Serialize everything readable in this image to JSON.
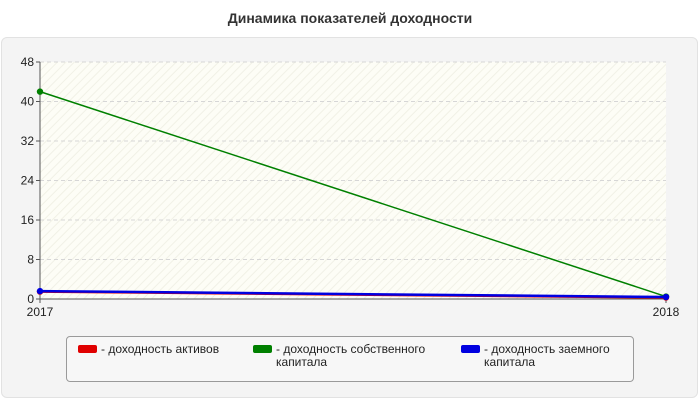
{
  "chart_data": {
    "type": "line",
    "title": "Динамика показателей доходности",
    "x": [
      "2017",
      "2018"
    ],
    "xlabel": "",
    "ylabel": "",
    "ylim": [
      0,
      48
    ],
    "yticks": [
      "0",
      "8",
      "16",
      "24",
      "32",
      "40",
      "48"
    ],
    "grid": true,
    "legend_position": "bottom",
    "series": [
      {
        "name": "- доходность активов",
        "color": "#e00000",
        "values": [
          1.5,
          0.3
        ]
      },
      {
        "name": "- доходность собственного капитала",
        "color": "#008000",
        "values": [
          42,
          0.5
        ]
      },
      {
        "name": "- доходность заемного капитала",
        "color": "#0000e0",
        "values": [
          1.6,
          0.4
        ]
      }
    ]
  }
}
